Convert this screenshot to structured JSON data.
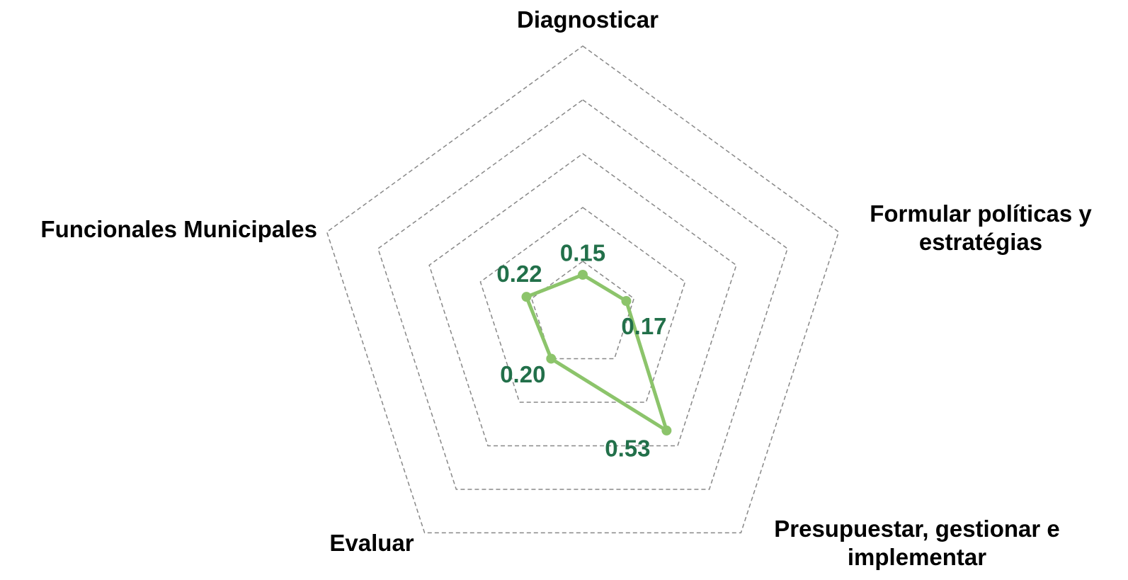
{
  "chart_data": {
    "type": "radar",
    "categories": [
      "Diagnosticar",
      "Formular políticas y estratégias",
      "Presupuestar, gestionar e implementar",
      "Evaluar",
      "Funcionales Municipales"
    ],
    "series": [
      {
        "color": "#8cc46b",
        "label_color": "#22704a",
        "values": [
          0.15,
          0.17,
          0.53,
          0.2,
          0.22
        ],
        "value_labels": [
          "0.15",
          "0.17",
          "0.53",
          "0.20",
          "0.22"
        ]
      }
    ],
    "rlim": [
      0,
      1
    ],
    "rticks": [
      0.2,
      0.4,
      0.6,
      0.8,
      1.0
    ],
    "grid": true
  }
}
